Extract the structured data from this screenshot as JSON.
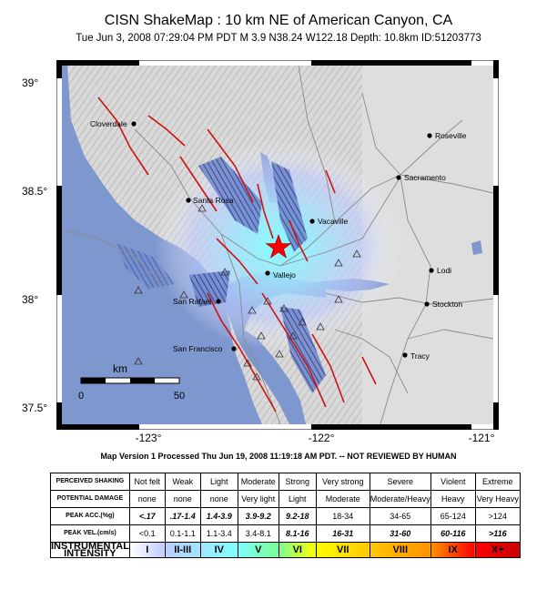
{
  "header": {
    "title": "CISN ShakeMap : 10 km NE of American Canyon, CA",
    "subtitle": "Tue Jun  3, 2008 07:29:04 PM PDT   M 3.9   N38.24 W122.18   Depth: 10.8km   ID:51203773"
  },
  "map": {
    "lat_labels": [
      "39°",
      "38.5°",
      "38°",
      "37.5°"
    ],
    "lon_labels": [
      "-123°",
      "-122°",
      "-121°"
    ],
    "scale": {
      "unit": "km",
      "start": "0",
      "end": "50"
    },
    "cities": [
      {
        "name": "Cloverdale"
      },
      {
        "name": "Roseville"
      },
      {
        "name": "Sacramento"
      },
      {
        "name": "Santa Rosa"
      },
      {
        "name": "Vacaville"
      },
      {
        "name": "Vallejo"
      },
      {
        "name": "Lodi"
      },
      {
        "name": "San Rafael"
      },
      {
        "name": "Stockton"
      },
      {
        "name": "San Francisco"
      },
      {
        "name": "Tracy"
      }
    ],
    "epicenter": {
      "lat": 38.24,
      "lon": -122.18
    },
    "colors": {
      "water": "#7f97cf",
      "land": "#d6d6d6",
      "fault": "#d01010",
      "epicenter": "#ff0000"
    }
  },
  "footer": {
    "version": "Map Version 1 Processed Thu Jun 19, 2008 11:19:18 AM PDT. -- NOT REVIEWED BY HUMAN"
  },
  "legend": {
    "row_labels": {
      "shaking": "PERCEIVED SHAKING",
      "damage": "POTENTIAL DAMAGE",
      "acc": "PEAK ACC.(%g)",
      "vel": "PEAK VEL.(cm/s)",
      "mmi": "INSTRUMENTAL INTENSITY"
    },
    "shaking": [
      "Not felt",
      "Weak",
      "Light",
      "Moderate",
      "Strong",
      "Very strong",
      "Severe",
      "Violent",
      "Extreme"
    ],
    "damage": [
      "none",
      "none",
      "none",
      "Very light",
      "Light",
      "Moderate",
      "Moderate/Heavy",
      "Heavy",
      "Very Heavy"
    ],
    "acc": [
      "<.17",
      ".17-1.4",
      "1.4-3.9",
      "3.9-9.2",
      "9.2-18",
      "18-34",
      "34-65",
      "65-124",
      ">124"
    ],
    "vel": [
      "<0.1",
      "0.1-1.1",
      "1.1-3.4",
      "3.4-8.1",
      "8.1-16",
      "16-31",
      "31-60",
      "60-116",
      ">116"
    ],
    "mmi": [
      "I",
      "II-III",
      "IV",
      "V",
      "VI",
      "VII",
      "VIII",
      "IX",
      "X+"
    ],
    "mmi_colors": [
      "#ffffff",
      "#bfccff",
      "#a0e6ff",
      "#80ffff",
      "#7aff93",
      "#ffff00",
      "#ffc800",
      "#ff9100",
      "#ff0000",
      "#c80000"
    ]
  }
}
